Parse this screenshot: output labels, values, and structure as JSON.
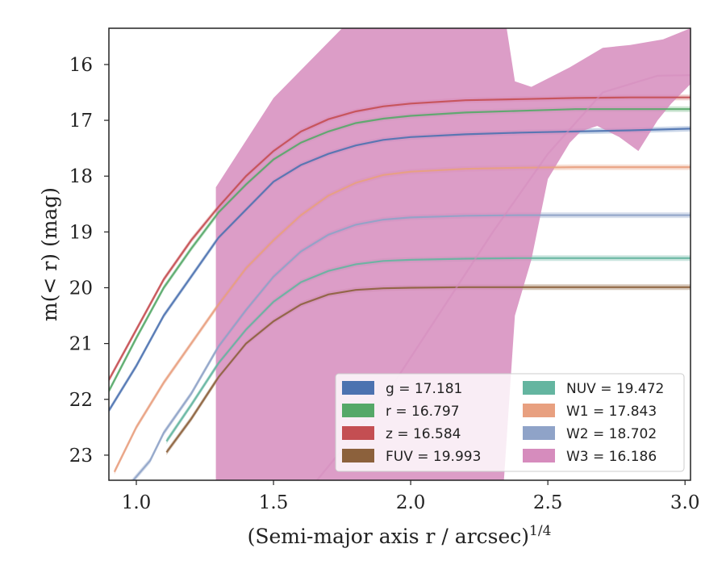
{
  "chart_data": {
    "type": "line",
    "xlabel": "(Semi-major axis r / arcsec)",
    "xlabel_exponent": "1/4",
    "ylabel": "m(< r) (mag)",
    "xlim": [
      0.9,
      3.02
    ],
    "ylim": [
      23.45,
      15.35
    ],
    "y_inverted": true,
    "grid": false,
    "legend_position": "lower-right",
    "x_ticks": [
      {
        "value": 1.0,
        "label": "1.0"
      },
      {
        "value": 1.5,
        "label": "1.5"
      },
      {
        "value": 2.0,
        "label": "2.0"
      },
      {
        "value": 2.5,
        "label": "2.5"
      },
      {
        "value": 3.0,
        "label": "3.0"
      }
    ],
    "y_ticks": [
      {
        "value": 16,
        "label": "16"
      },
      {
        "value": 17,
        "label": "17"
      },
      {
        "value": 18,
        "label": "18"
      },
      {
        "value": 19,
        "label": "19"
      },
      {
        "value": 20,
        "label": "20"
      },
      {
        "value": 21,
        "label": "21"
      },
      {
        "value": 22,
        "label": "22"
      },
      {
        "value": 23,
        "label": "23"
      }
    ],
    "series": [
      {
        "name": "g",
        "legend_label": "g = 17.181",
        "color": "#4c72b0",
        "band_color": "#6a8dbf",
        "x": [
          0.9,
          1.0,
          1.1,
          1.2,
          1.3,
          1.4,
          1.5,
          1.6,
          1.7,
          1.8,
          1.9,
          2.0,
          2.2,
          2.4,
          2.6,
          2.8,
          3.02
        ],
        "y": [
          22.2,
          21.4,
          20.5,
          19.8,
          19.1,
          18.6,
          18.1,
          17.8,
          17.6,
          17.45,
          17.35,
          17.3,
          17.25,
          17.22,
          17.2,
          17.18,
          17.15
        ]
      },
      {
        "name": "r",
        "legend_label": "r = 16.797",
        "color": "#55a868",
        "band_color": "#72b883",
        "x": [
          0.9,
          1.0,
          1.1,
          1.2,
          1.3,
          1.4,
          1.5,
          1.6,
          1.7,
          1.8,
          1.9,
          2.0,
          2.2,
          2.4,
          2.6,
          2.8,
          3.02
        ],
        "y": [
          21.85,
          20.9,
          20.0,
          19.3,
          18.65,
          18.15,
          17.7,
          17.4,
          17.2,
          17.05,
          16.97,
          16.92,
          16.86,
          16.83,
          16.8,
          16.8,
          16.8
        ]
      },
      {
        "name": "z",
        "legend_label": "z = 16.584",
        "color": "#c44e52",
        "band_color": "#d06a6e",
        "x": [
          0.9,
          1.0,
          1.1,
          1.2,
          1.3,
          1.4,
          1.5,
          1.6,
          1.7,
          1.8,
          1.9,
          2.0,
          2.2,
          2.4,
          2.6,
          2.8,
          3.02
        ],
        "y": [
          21.65,
          20.75,
          19.85,
          19.15,
          18.55,
          18.0,
          17.55,
          17.2,
          16.98,
          16.84,
          16.75,
          16.7,
          16.64,
          16.62,
          16.6,
          16.59,
          16.59
        ]
      },
      {
        "name": "FUV",
        "legend_label": "FUV = 19.993",
        "color": "#8c613c",
        "band_color": "#8c613c",
        "x": [
          1.11,
          1.2,
          1.3,
          1.4,
          1.5,
          1.6,
          1.7,
          1.8,
          1.9,
          2.0,
          2.2,
          2.4,
          2.6,
          2.8,
          3.02
        ],
        "y": [
          22.95,
          22.35,
          21.6,
          21.0,
          20.6,
          20.3,
          20.12,
          20.04,
          20.01,
          20.0,
          19.99,
          19.99,
          19.99,
          19.99,
          19.99
        ]
      },
      {
        "name": "NUV",
        "legend_label": "NUV = 19.472",
        "color": "#64b5a0",
        "band_color": "#64b5a0",
        "x": [
          1.11,
          1.2,
          1.3,
          1.4,
          1.5,
          1.6,
          1.7,
          1.8,
          1.9,
          2.0,
          2.2,
          2.4,
          2.6,
          2.8,
          3.02
        ],
        "y": [
          22.75,
          22.1,
          21.35,
          20.75,
          20.25,
          19.9,
          19.7,
          19.58,
          19.52,
          19.5,
          19.48,
          19.47,
          19.47,
          19.47,
          19.47
        ]
      },
      {
        "name": "W1",
        "legend_label": "W1 = 17.843",
        "color": "#e8a080",
        "band_color": "#e8a080",
        "x": [
          0.92,
          1.0,
          1.1,
          1.2,
          1.3,
          1.4,
          1.5,
          1.6,
          1.7,
          1.8,
          1.9,
          2.0,
          2.2,
          2.4,
          2.6,
          2.8,
          3.02
        ],
        "y": [
          23.3,
          22.5,
          21.7,
          21.0,
          20.3,
          19.65,
          19.15,
          18.7,
          18.35,
          18.12,
          17.98,
          17.92,
          17.87,
          17.85,
          17.84,
          17.84,
          17.84
        ]
      },
      {
        "name": "W2",
        "legend_label": "W2 = 18.702",
        "color": "#8fa3c8",
        "band_color": "#8fa3c8",
        "x": [
          0.98,
          1.05,
          1.1,
          1.2,
          1.3,
          1.4,
          1.5,
          1.6,
          1.7,
          1.8,
          1.9,
          2.0,
          2.2,
          2.4,
          2.6,
          2.8,
          3.02
        ],
        "y": [
          23.5,
          23.1,
          22.6,
          21.9,
          21.05,
          20.4,
          19.8,
          19.35,
          19.05,
          18.87,
          18.78,
          18.74,
          18.71,
          18.7,
          18.7,
          18.7,
          18.7
        ]
      },
      {
        "name": "W3",
        "legend_label": "W3 = 16.186",
        "color": "#d68cbd",
        "band_color": "#d68cbd",
        "x": [
          1.65,
          1.9,
          2.1,
          2.3,
          2.5,
          2.7,
          2.9,
          3.02
        ],
        "y": [
          23.5,
          22.0,
          20.5,
          19.0,
          17.6,
          16.5,
          16.2,
          16.19
        ],
        "band": {
          "upper": {
            "x": [
              1.29,
              1.5,
              1.75,
              1.93,
              2.0,
              2.2,
              2.35,
              2.38,
              2.44,
              2.5,
              2.58,
              2.7,
              2.8,
              2.92,
              3.02
            ],
            "y": [
              18.2,
              16.6,
              15.35,
              15.35,
              15.35,
              15.35,
              15.35,
              16.3,
              16.4,
              16.25,
              16.05,
              15.7,
              15.65,
              15.55,
              15.35
            ]
          },
          "lower": {
            "x": [
              1.29,
              2.34,
              2.38,
              2.44,
              2.5,
              2.58,
              2.62,
              2.68,
              2.76,
              2.83,
              2.9,
              2.95,
              3.02
            ],
            "y": [
              23.45,
              23.45,
              20.5,
              19.5,
              18.05,
              17.4,
              17.2,
              17.1,
              17.3,
              17.55,
              17.0,
              16.7,
              16.35
            ]
          }
        }
      }
    ],
    "legend": [
      {
        "label": "g = 17.181",
        "color": "#4c72b0"
      },
      {
        "label": "r = 16.797",
        "color": "#55a868"
      },
      {
        "label": "z = 16.584",
        "color": "#c44e52"
      },
      {
        "label": "FUV = 19.993",
        "color": "#8c613c"
      },
      {
        "label": "NUV = 19.472",
        "color": "#64b5a0"
      },
      {
        "label": "W1 = 17.843",
        "color": "#e8a080"
      },
      {
        "label": "W2 = 18.702",
        "color": "#8fa3c8"
      },
      {
        "label": "W3 = 16.186",
        "color": "#d68cbd"
      }
    ]
  }
}
